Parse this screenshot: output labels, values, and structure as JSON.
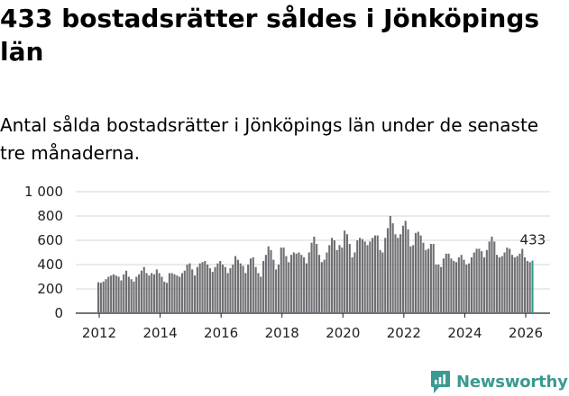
{
  "title": "433 bostadsrätter såldes i Jönköpings län",
  "subtitle": "Antal sålda bostadsrätter i Jönköpings län under de senaste tre månaderna.",
  "brand": {
    "name": "Newsworthy",
    "logo_icon": "newsworthy-logo-icon",
    "color": "#3b9a91"
  },
  "chart_data": {
    "type": "bar",
    "title": "433 bostadsrätter såldes i Jönköpings län",
    "subtitle": "Antal sålda bostadsrätter i Jönköpings län under de senaste tre månaderna.",
    "xlabel": "",
    "ylabel": "",
    "x_ticks": [
      "2012",
      "2014",
      "2016",
      "2018",
      "2020",
      "2022",
      "2024",
      "2026"
    ],
    "y_ticks": [
      "0",
      "200",
      "400",
      "600",
      "800",
      "1 000"
    ],
    "ylim": [
      0,
      1000
    ],
    "x_start_year": 2012,
    "grid": true,
    "bar_color": "#6f6e73",
    "highlight_color": "#2e9e8f",
    "annotation": "433",
    "values": [
      255,
      250,
      260,
      280,
      300,
      310,
      320,
      310,
      300,
      270,
      320,
      350,
      300,
      280,
      260,
      300,
      320,
      350,
      380,
      330,
      310,
      330,
      320,
      360,
      330,
      300,
      260,
      250,
      330,
      330,
      320,
      310,
      300,
      330,
      350,
      400,
      410,
      360,
      310,
      380,
      410,
      420,
      430,
      400,
      370,
      340,
      380,
      410,
      430,
      400,
      380,
      330,
      370,
      400,
      470,
      440,
      410,
      390,
      330,
      400,
      450,
      460,
      380,
      330,
      300,
      430,
      480,
      550,
      520,
      440,
      360,
      400,
      540,
      540,
      470,
      420,
      480,
      500,
      490,
      500,
      480,
      460,
      410,
      500,
      580,
      630,
      570,
      480,
      420,
      440,
      500,
      560,
      620,
      600,
      520,
      560,
      540,
      680,
      650,
      570,
      460,
      500,
      600,
      620,
      610,
      590,
      560,
      590,
      620,
      640,
      640,
      520,
      500,
      620,
      700,
      800,
      740,
      650,
      620,
      650,
      720,
      760,
      690,
      550,
      560,
      660,
      670,
      640,
      580,
      520,
      530,
      570,
      570,
      400,
      400,
      380,
      450,
      490,
      490,
      450,
      430,
      420,
      460,
      480,
      440,
      400,
      410,
      460,
      500,
      530,
      530,
      510,
      460,
      520,
      590,
      630,
      590,
      480,
      460,
      470,
      500,
      540,
      530,
      480,
      460,
      470,
      490,
      530,
      460,
      430,
      420,
      433
    ]
  }
}
